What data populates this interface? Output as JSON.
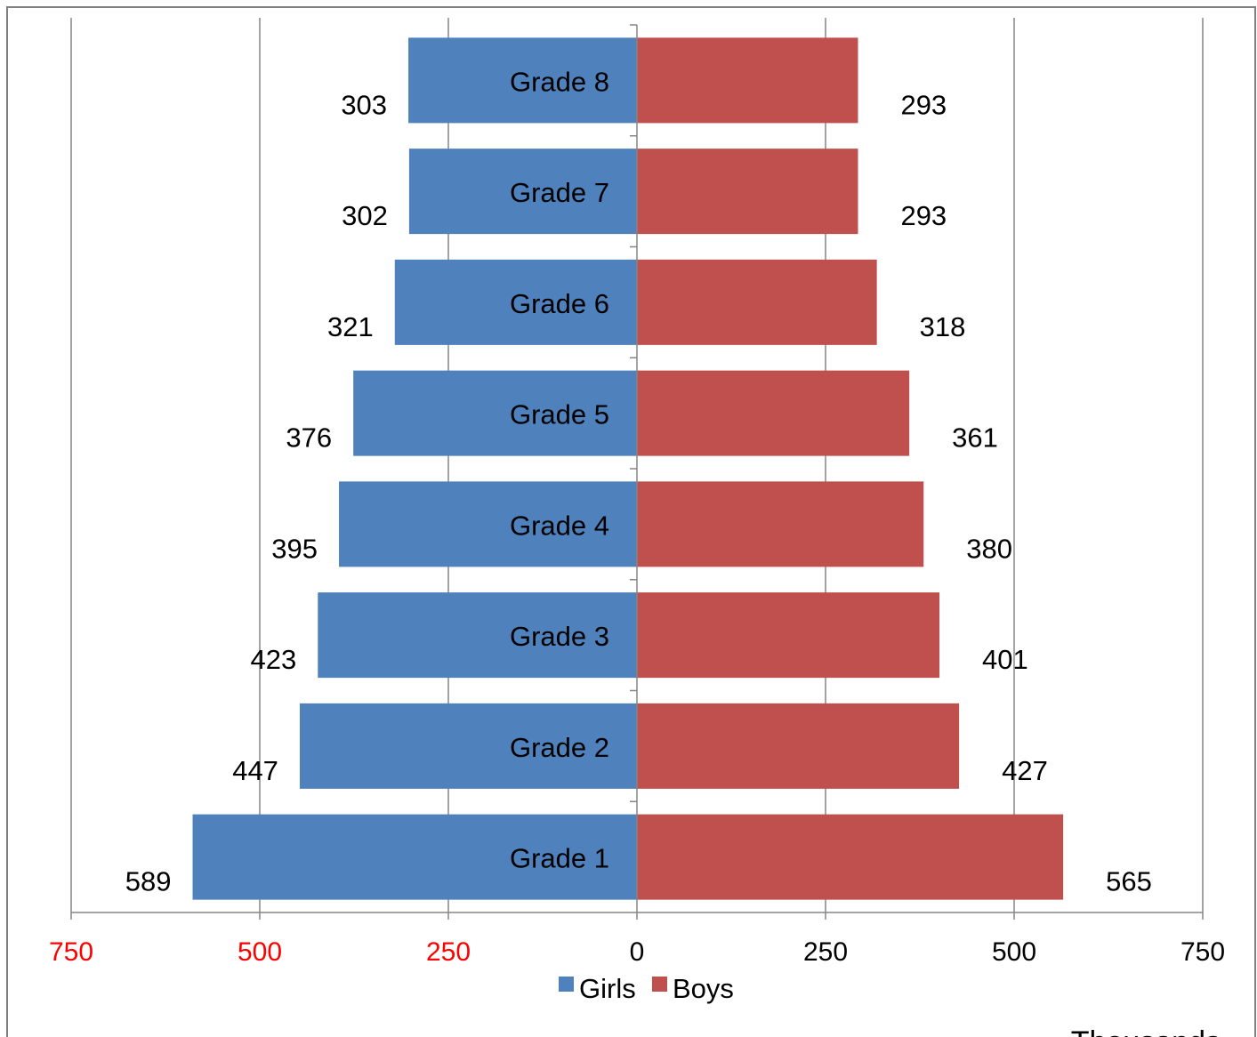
{
  "chart_data": {
    "type": "bar",
    "orientation": "horizontal",
    "layout": "population-pyramid",
    "categories": [
      "Grade 1",
      "Grade 2",
      "Grade 3",
      "Grade 4",
      "Grade 5",
      "Grade 6",
      "Grade 7",
      "Grade 8"
    ],
    "series": [
      {
        "name": "Girls",
        "values": [
          589,
          447,
          423,
          395,
          376,
          321,
          302,
          303
        ],
        "direction": "left",
        "color": "#4f81bd"
      },
      {
        "name": "Boys",
        "values": [
          565,
          427,
          401,
          380,
          361,
          318,
          293,
          293
        ],
        "direction": "right",
        "color": "#c0504d"
      }
    ],
    "x_ticks": [
      {
        "label": "750",
        "value": -750,
        "color": "#ff0000"
      },
      {
        "label": "500",
        "value": -500,
        "color": "#ff0000"
      },
      {
        "label": "250",
        "value": -250,
        "color": "#ff0000"
      },
      {
        "label": "0",
        "value": 0,
        "color": "#000000"
      },
      {
        "label": "250",
        "value": 250,
        "color": "#000000"
      },
      {
        "label": "500",
        "value": 500,
        "color": "#000000"
      },
      {
        "label": "750",
        "value": 750,
        "color": "#000000"
      }
    ],
    "xlim": [
      -750,
      750
    ],
    "grid": true,
    "legend_position": "bottom-center",
    "footer_text": "Thousands"
  }
}
